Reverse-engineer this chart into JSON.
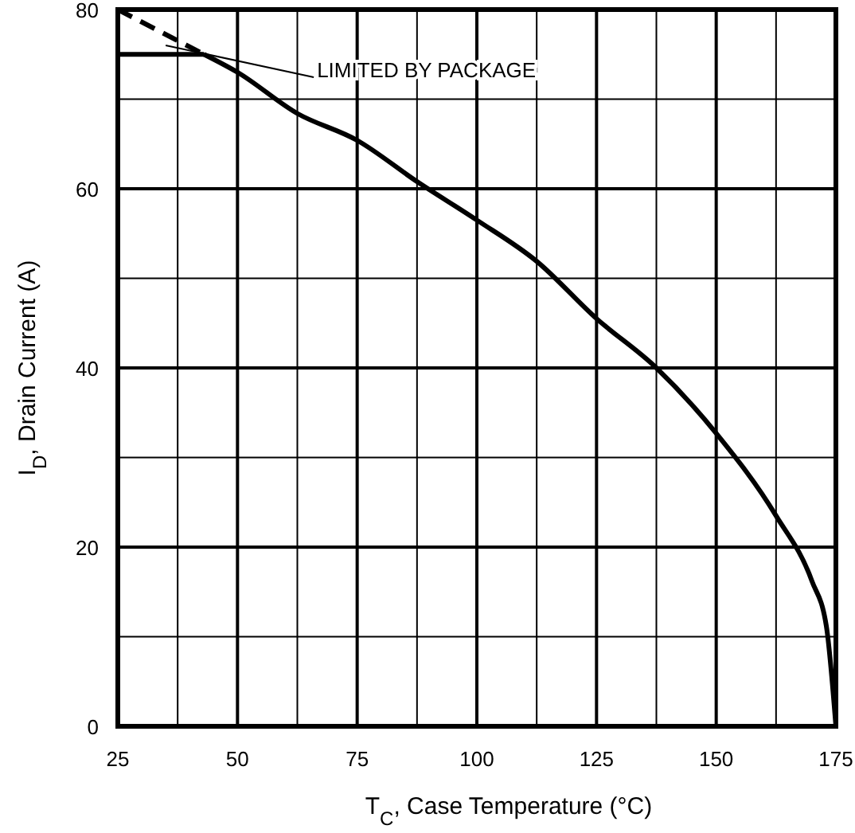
{
  "chart_data": {
    "type": "line",
    "xlabel": "T$_{C}$, Case Temperature (°C)",
    "ylabel": "I$_{D}$, Drain Current (A)",
    "xlim": [
      25,
      175
    ],
    "ylim": [
      0,
      80
    ],
    "xticks": [
      25,
      {
        "value": 37.5,
        "label": null
      },
      50,
      {
        "value": 62.5,
        "label": null
      },
      75,
      {
        "value": 87.5,
        "label": null
      },
      100,
      {
        "value": 112.5,
        "label": null
      },
      125,
      {
        "value": 137.5,
        "label": null
      },
      150,
      {
        "value": 162.5,
        "label": null
      },
      175
    ],
    "yticks": [
      0,
      {
        "value": 10,
        "label": null
      },
      20,
      {
        "value": 30,
        "label": null
      },
      40,
      {
        "value": 50,
        "label": null
      },
      60,
      {
        "value": 70,
        "label": null
      },
      80
    ],
    "grid": true,
    "marker": "none",
    "series": [
      {
        "color": "#000000",
        "line_style": "solid",
        "x": [
          43,
          50,
          62.5,
          75,
          87.5,
          100,
          112.5,
          125,
          137.5,
          150,
          162.5,
          170,
          173,
          175
        ],
        "values": [
          75,
          73,
          68.4,
          65.4,
          60.8,
          56.5,
          51.9,
          45.5,
          40,
          32.7,
          23.5,
          16.2,
          11.2,
          0
        ]
      },
      {
        "color": "#000000",
        "line_style": "solid",
        "x": [
          25,
          43
        ],
        "values": [
          75,
          75
        ]
      },
      {
        "color": "#000000",
        "line_style": "dashed",
        "x": [
          25,
          43
        ],
        "values": [
          80,
          75
        ]
      }
    ],
    "annotations": [
      {
        "text": "LIMITED BY PACKAGE",
        "x": 35,
        "y": 76
      }
    ]
  }
}
